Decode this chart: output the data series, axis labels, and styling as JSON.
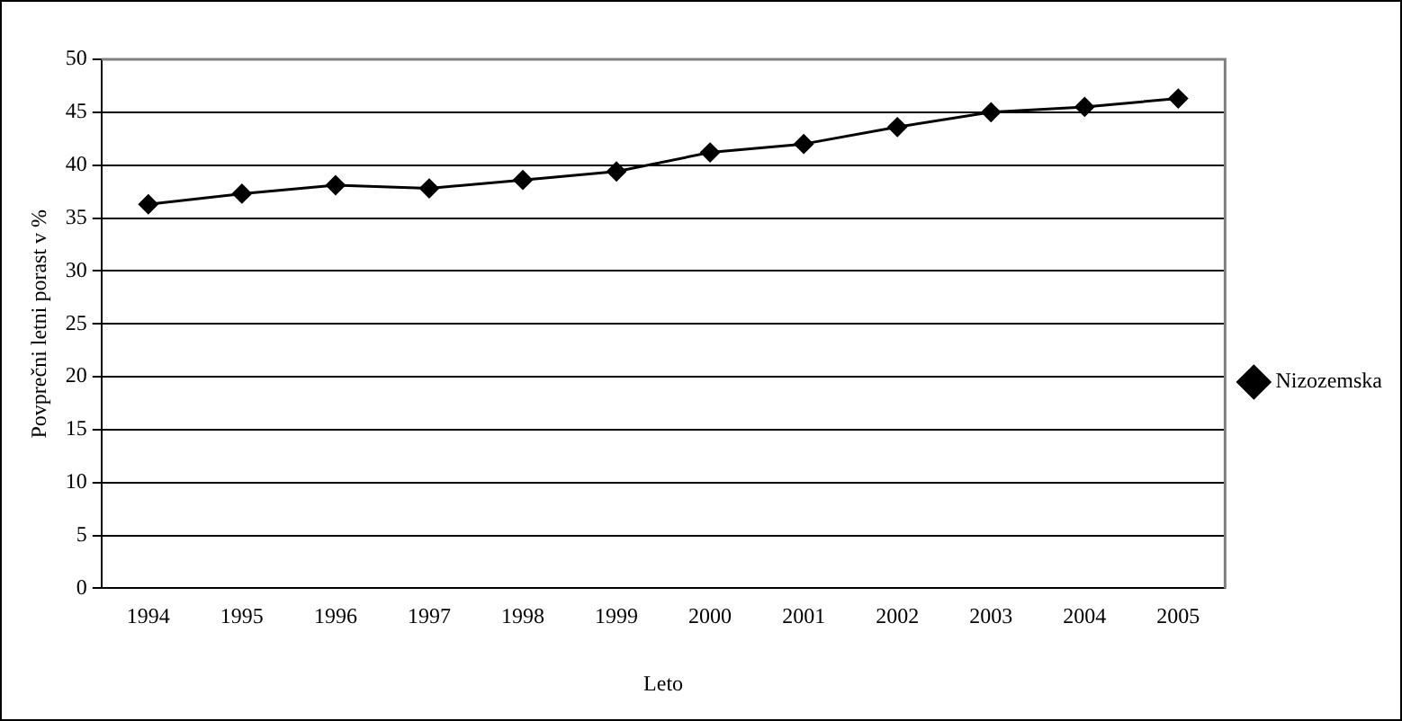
{
  "chart_data": {
    "type": "line",
    "xlabel": "Leto",
    "ylabel": "Povprečni letni porast v %",
    "categories": [
      "1994",
      "1995",
      "1996",
      "1997",
      "1998",
      "1999",
      "2000",
      "2001",
      "2002",
      "2003",
      "2004",
      "2005"
    ],
    "series": [
      {
        "name": "Nizozemska",
        "color": "#000000",
        "values": [
          36.3,
          37.3,
          38.1,
          37.8,
          38.6,
          39.4,
          41.2,
          42.0,
          43.6,
          45.0,
          45.5,
          46.3
        ]
      }
    ],
    "ylim": [
      0,
      50
    ],
    "yticks": [
      0,
      5,
      10,
      15,
      20,
      25,
      30,
      35,
      40,
      45,
      50
    ],
    "grid": "y",
    "legend": "right",
    "marker": "diamond",
    "line_style": "solid"
  }
}
